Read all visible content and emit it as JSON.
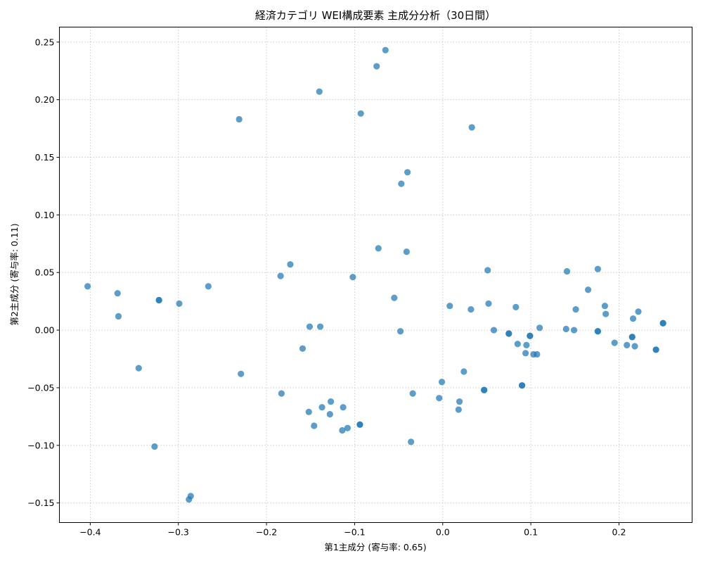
{
  "chart_data": {
    "type": "scatter",
    "title": "経済カテゴリ WEI構成要素 主成分分析（30日間）",
    "xlabel": "第1主成分 (寄与率: 0.65)",
    "ylabel": "第2主成分 (寄与率: 0.11)",
    "xlim": [
      -0.435,
      0.283
    ],
    "ylim": [
      -0.167,
      0.263
    ],
    "xticks": [
      -0.4,
      -0.3,
      -0.2,
      -0.1,
      0.0,
      0.1,
      0.2
    ],
    "xtick_labels": [
      "−0.4",
      "−0.3",
      "−0.2",
      "−0.1",
      "0.0",
      "0.1",
      "0.2"
    ],
    "yticks": [
      -0.15,
      -0.1,
      -0.05,
      0.0,
      0.05,
      0.1,
      0.15,
      0.2,
      0.25
    ],
    "ytick_labels": [
      "−0.15",
      "−0.10",
      "−0.05",
      "0.00",
      "0.05",
      "0.10",
      "0.15",
      "0.20",
      "0.25"
    ],
    "grid": true,
    "marker_color": "#1f77b4",
    "points": [
      [
        -0.403,
        0.038
      ],
      [
        -0.369,
        0.032
      ],
      [
        -0.368,
        0.012
      ],
      [
        -0.345,
        -0.033
      ],
      [
        -0.327,
        -0.101
      ],
      [
        -0.322,
        0.026
      ],
      [
        -0.322,
        0.026
      ],
      [
        -0.299,
        0.023
      ],
      [
        -0.288,
        -0.147
      ],
      [
        -0.286,
        -0.144
      ],
      [
        -0.266,
        0.038
      ],
      [
        -0.231,
        0.183
      ],
      [
        -0.229,
        -0.038
      ],
      [
        -0.184,
        0.047
      ],
      [
        -0.183,
        -0.055
      ],
      [
        -0.173,
        0.057
      ],
      [
        -0.159,
        -0.016
      ],
      [
        -0.152,
        -0.071
      ],
      [
        -0.151,
        0.003
      ],
      [
        -0.146,
        -0.083
      ],
      [
        -0.14,
        0.207
      ],
      [
        -0.139,
        0.003
      ],
      [
        -0.137,
        -0.067
      ],
      [
        -0.128,
        -0.073
      ],
      [
        -0.127,
        -0.062
      ],
      [
        -0.114,
        -0.087
      ],
      [
        -0.113,
        -0.067
      ],
      [
        -0.108,
        -0.085
      ],
      [
        -0.102,
        0.046
      ],
      [
        -0.094,
        -0.082
      ],
      [
        -0.094,
        -0.082
      ],
      [
        -0.093,
        0.188
      ],
      [
        -0.075,
        0.229
      ],
      [
        -0.073,
        0.071
      ],
      [
        -0.065,
        0.243
      ],
      [
        -0.055,
        0.028
      ],
      [
        -0.048,
        -0.001
      ],
      [
        -0.047,
        0.127
      ],
      [
        -0.041,
        0.068
      ],
      [
        -0.04,
        0.137
      ],
      [
        -0.036,
        -0.097
      ],
      [
        -0.034,
        -0.055
      ],
      [
        -0.004,
        -0.059
      ],
      [
        -0.001,
        -0.045
      ],
      [
        0.008,
        0.021
      ],
      [
        0.018,
        -0.069
      ],
      [
        0.019,
        -0.062
      ],
      [
        0.024,
        -0.036
      ],
      [
        0.032,
        0.018
      ],
      [
        0.033,
        0.176
      ],
      [
        0.047,
        -0.052
      ],
      [
        0.047,
        -0.052
      ],
      [
        0.051,
        0.052
      ],
      [
        0.052,
        0.023
      ],
      [
        0.058,
        0.0
      ],
      [
        0.075,
        -0.003
      ],
      [
        0.075,
        -0.003
      ],
      [
        0.083,
        0.02
      ],
      [
        0.085,
        -0.012
      ],
      [
        0.09,
        -0.048
      ],
      [
        0.09,
        -0.048
      ],
      [
        0.094,
        -0.02
      ],
      [
        0.095,
        -0.013
      ],
      [
        0.099,
        -0.005
      ],
      [
        0.099,
        -0.005
      ],
      [
        0.103,
        -0.021
      ],
      [
        0.107,
        -0.021
      ],
      [
        0.11,
        0.002
      ],
      [
        0.14,
        0.001
      ],
      [
        0.141,
        0.051
      ],
      [
        0.149,
        0.0
      ],
      [
        0.151,
        0.018
      ],
      [
        0.165,
        0.035
      ],
      [
        0.176,
        0.053
      ],
      [
        0.176,
        -0.001
      ],
      [
        0.176,
        -0.001
      ],
      [
        0.184,
        0.021
      ],
      [
        0.185,
        0.014
      ],
      [
        0.195,
        -0.011
      ],
      [
        0.209,
        -0.013
      ],
      [
        0.215,
        -0.006
      ],
      [
        0.215,
        -0.006
      ],
      [
        0.216,
        0.01
      ],
      [
        0.218,
        -0.014
      ],
      [
        0.222,
        0.016
      ],
      [
        0.242,
        -0.017
      ],
      [
        0.242,
        -0.017
      ],
      [
        0.25,
        0.006
      ],
      [
        0.25,
        0.006
      ]
    ]
  }
}
